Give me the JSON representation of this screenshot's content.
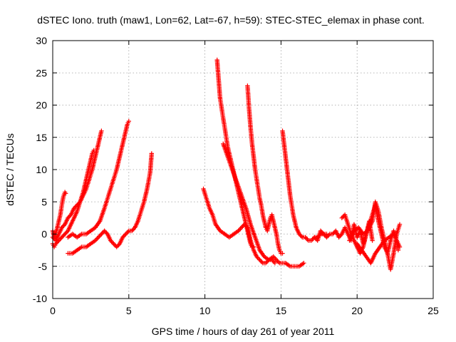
{
  "chart_data": {
    "type": "scatter",
    "title": "dSTEC Iono. truth (maw1, Lon=62, Lat=-67, h=59): STEC-STEC_elemax in phase cont.",
    "xlabel": "GPS time / hours of day 261 of year 2011",
    "ylabel": "dSTEC  / TECUs",
    "xlim": [
      0,
      25
    ],
    "ylim": [
      -10,
      30
    ],
    "x_ticks": [
      0,
      5,
      10,
      15,
      20,
      25
    ],
    "y_ticks": [
      -10,
      -5,
      0,
      5,
      10,
      15,
      20,
      25,
      30
    ],
    "grid": true,
    "marker": "+",
    "color": "#ff0000",
    "series": [
      {
        "x": [
          0.0,
          0.1,
          0.2,
          0.3,
          0.4,
          0.5,
          0.6,
          0.7,
          0.8,
          0.85
        ],
        "y": [
          0.5,
          -0.5,
          0.2,
          1.0,
          2.0,
          3.0,
          4.5,
          5.8,
          6.5,
          6.3
        ]
      },
      {
        "x": [
          0.0,
          0.1,
          0.2,
          0.4,
          0.6,
          0.8,
          1.0,
          1.2,
          1.4,
          1.6,
          1.8,
          2.0,
          2.2,
          2.4,
          2.6,
          2.7
        ],
        "y": [
          -1.5,
          -2.0,
          -1.5,
          -1.0,
          -0.5,
          0.0,
          0.5,
          1.5,
          2.5,
          3.5,
          5.0,
          6.5,
          8.5,
          10.5,
          12.5,
          13.0
        ]
      },
      {
        "x": [
          0.0,
          0.2,
          0.4,
          0.6,
          0.8,
          1.0,
          1.2,
          1.4,
          1.6,
          1.8,
          2.0,
          2.2,
          2.4,
          2.6,
          2.8,
          3.0,
          3.2
        ],
        "y": [
          -0.5,
          -1.0,
          0.0,
          1.0,
          1.5,
          2.5,
          3.0,
          4.0,
          4.5,
          5.0,
          6.0,
          7.0,
          8.5,
          10.0,
          12.0,
          14.0,
          16.0
        ]
      },
      {
        "x": [
          1.0,
          1.3,
          1.6,
          1.9,
          2.2,
          2.5,
          2.8,
          3.1,
          3.4,
          3.6,
          3.8,
          4.0,
          4.2,
          4.4,
          4.6,
          4.8,
          4.9,
          5.0
        ],
        "y": [
          -0.5,
          0.0,
          -0.5,
          0.0,
          0.0,
          0.5,
          1.0,
          2.0,
          4.0,
          5.5,
          7.0,
          8.5,
          10.0,
          12.0,
          14.0,
          16.0,
          17.0,
          17.5
        ]
      },
      {
        "x": [
          1.0,
          1.3,
          1.6,
          1.9,
          2.2,
          2.5,
          2.8,
          3.0,
          3.2,
          3.4,
          3.6,
          3.8,
          4.0,
          4.2,
          4.4,
          4.6,
          4.8,
          5.0,
          5.2,
          5.4,
          5.6,
          5.8,
          6.0,
          6.2,
          6.4,
          6.5
        ],
        "y": [
          -3.0,
          -3.0,
          -2.5,
          -2.0,
          -2.0,
          -1.5,
          -1.0,
          -0.5,
          0.0,
          0.5,
          0.0,
          -1.0,
          -1.5,
          -2.0,
          -1.5,
          -0.5,
          0.0,
          0.5,
          0.5,
          1.0,
          2.0,
          3.5,
          5.0,
          7.0,
          9.5,
          12.5
        ]
      },
      {
        "x": [
          9.9,
          10.1,
          10.3,
          10.5,
          10.7,
          11.0,
          11.3,
          11.6,
          11.9,
          12.2,
          12.4,
          12.6,
          12.8,
          13.0,
          13.2,
          13.4,
          13.6,
          13.8,
          14.0,
          14.2,
          14.4,
          14.6
        ],
        "y": [
          7.0,
          5.5,
          4.0,
          3.0,
          1.5,
          0.5,
          0.0,
          -0.5,
          0.0,
          0.5,
          1.0,
          1.5,
          1.0,
          -1.0,
          -2.5,
          -3.5,
          -4.0,
          -4.5,
          -4.5,
          -4.0,
          -4.0,
          -4.5
        ]
      },
      {
        "x": [
          10.8,
          10.9,
          11.0,
          11.1,
          11.2,
          11.3,
          11.4,
          11.5,
          11.6,
          11.7,
          11.8,
          11.9,
          12.0,
          12.1,
          12.2,
          12.3,
          12.4,
          12.5,
          12.6,
          12.7,
          12.8,
          12.9,
          13.0,
          13.1,
          13.2
        ],
        "y": [
          27.0,
          24.0,
          21.0,
          19.5,
          18.0,
          16.5,
          15.0,
          13.5,
          12.5,
          11.5,
          10.5,
          9.5,
          8.5,
          7.5,
          6.5,
          5.5,
          4.5,
          3.5,
          2.5,
          1.5,
          0.5,
          -0.5,
          -1.5,
          -2.0,
          -2.0
        ]
      },
      {
        "x": [
          11.2,
          11.5,
          11.8,
          12.1,
          12.4,
          12.7,
          13.0,
          13.3,
          13.6,
          13.9,
          14.2,
          14.5,
          14.7,
          14.9,
          15.1,
          15.3,
          15.6,
          15.9,
          16.2,
          16.5
        ],
        "y": [
          14.0,
          12.0,
          10.0,
          8.0,
          6.0,
          4.0,
          1.5,
          -0.5,
          -2.5,
          -3.5,
          -4.0,
          -3.5,
          -4.0,
          -4.5,
          -4.5,
          -4.5,
          -5.0,
          -5.0,
          -5.0,
          -4.5
        ]
      },
      {
        "x": [
          12.8,
          12.9,
          13.0,
          13.1,
          13.2,
          13.3,
          13.4,
          13.5,
          13.6,
          13.7,
          13.8,
          13.9,
          14.0,
          14.1,
          14.2,
          14.3,
          14.4,
          14.5,
          14.6,
          14.7,
          14.8,
          14.9,
          15.0,
          15.1
        ],
        "y": [
          23.0,
          19.5,
          16.5,
          14.0,
          12.0,
          10.0,
          8.5,
          7.0,
          5.5,
          4.5,
          3.0,
          2.0,
          1.0,
          0.5,
          1.5,
          2.5,
          3.0,
          2.0,
          1.0,
          0.0,
          -1.5,
          -2.5,
          -3.0,
          -3.0
        ]
      },
      {
        "x": [
          15.1,
          15.2,
          15.3,
          15.4,
          15.5,
          15.6,
          15.7,
          15.8,
          15.9,
          16.0,
          16.2,
          16.4,
          16.6,
          16.8,
          17.0,
          17.2,
          17.4,
          17.6,
          17.8,
          18.0
        ],
        "y": [
          16.0,
          14.0,
          12.0,
          10.0,
          8.0,
          6.0,
          4.5,
          3.0,
          2.0,
          1.0,
          0.0,
          -0.5,
          -0.5,
          -1.0,
          -1.0,
          -0.5,
          -0.5,
          0.0,
          0.0,
          0.0
        ]
      },
      {
        "x": [
          17.2,
          17.4,
          17.6,
          17.8,
          18.0,
          18.2,
          18.4,
          18.6,
          18.8,
          19.0,
          19.2,
          19.4,
          19.6,
          19.8,
          20.0,
          20.2,
          20.4,
          20.6,
          20.8,
          21.0
        ],
        "y": [
          -0.5,
          -1.0,
          0.5,
          0.0,
          -0.5,
          0.0,
          0.0,
          0.5,
          -0.5,
          0.0,
          1.0,
          0.0,
          -1.0,
          1.5,
          -0.5,
          0.5,
          -1.5,
          0.0,
          2.0,
          -1.0
        ]
      },
      {
        "x": [
          19.0,
          19.2,
          19.4,
          19.6,
          19.8,
          20.0,
          20.2,
          20.4,
          20.6,
          20.8,
          21.0,
          21.2,
          21.4,
          21.6,
          21.8,
          22.0,
          22.2,
          22.4,
          22.6,
          22.8
        ],
        "y": [
          2.5,
          3.0,
          1.5,
          0.0,
          -1.0,
          -2.0,
          -3.0,
          -2.0,
          0.0,
          1.5,
          3.0,
          4.5,
          2.0,
          0.0,
          -2.0,
          -3.0,
          -1.0,
          0.5,
          -1.0,
          -2.0
        ]
      },
      {
        "x": [
          19.5,
          19.8,
          20.1,
          20.4,
          20.7,
          21.0,
          21.2,
          21.4,
          21.6,
          21.8,
          22.0,
          22.2,
          22.4,
          22.6,
          22.8
        ],
        "y": [
          -1.0,
          0.5,
          1.0,
          0.0,
          0.5,
          2.0,
          5.0,
          3.5,
          1.0,
          -1.0,
          -3.0,
          -5.5,
          -3.0,
          0.0,
          1.5
        ]
      },
      {
        "x": [
          20.0,
          20.3,
          20.6,
          20.9,
          21.2,
          21.5,
          21.8,
          22.1,
          22.4,
          22.6,
          22.7
        ],
        "y": [
          -1.5,
          -2.5,
          -3.5,
          -4.5,
          -3.0,
          -2.0,
          -1.0,
          -0.5,
          0.0,
          -1.0,
          -2.5
        ]
      }
    ]
  }
}
